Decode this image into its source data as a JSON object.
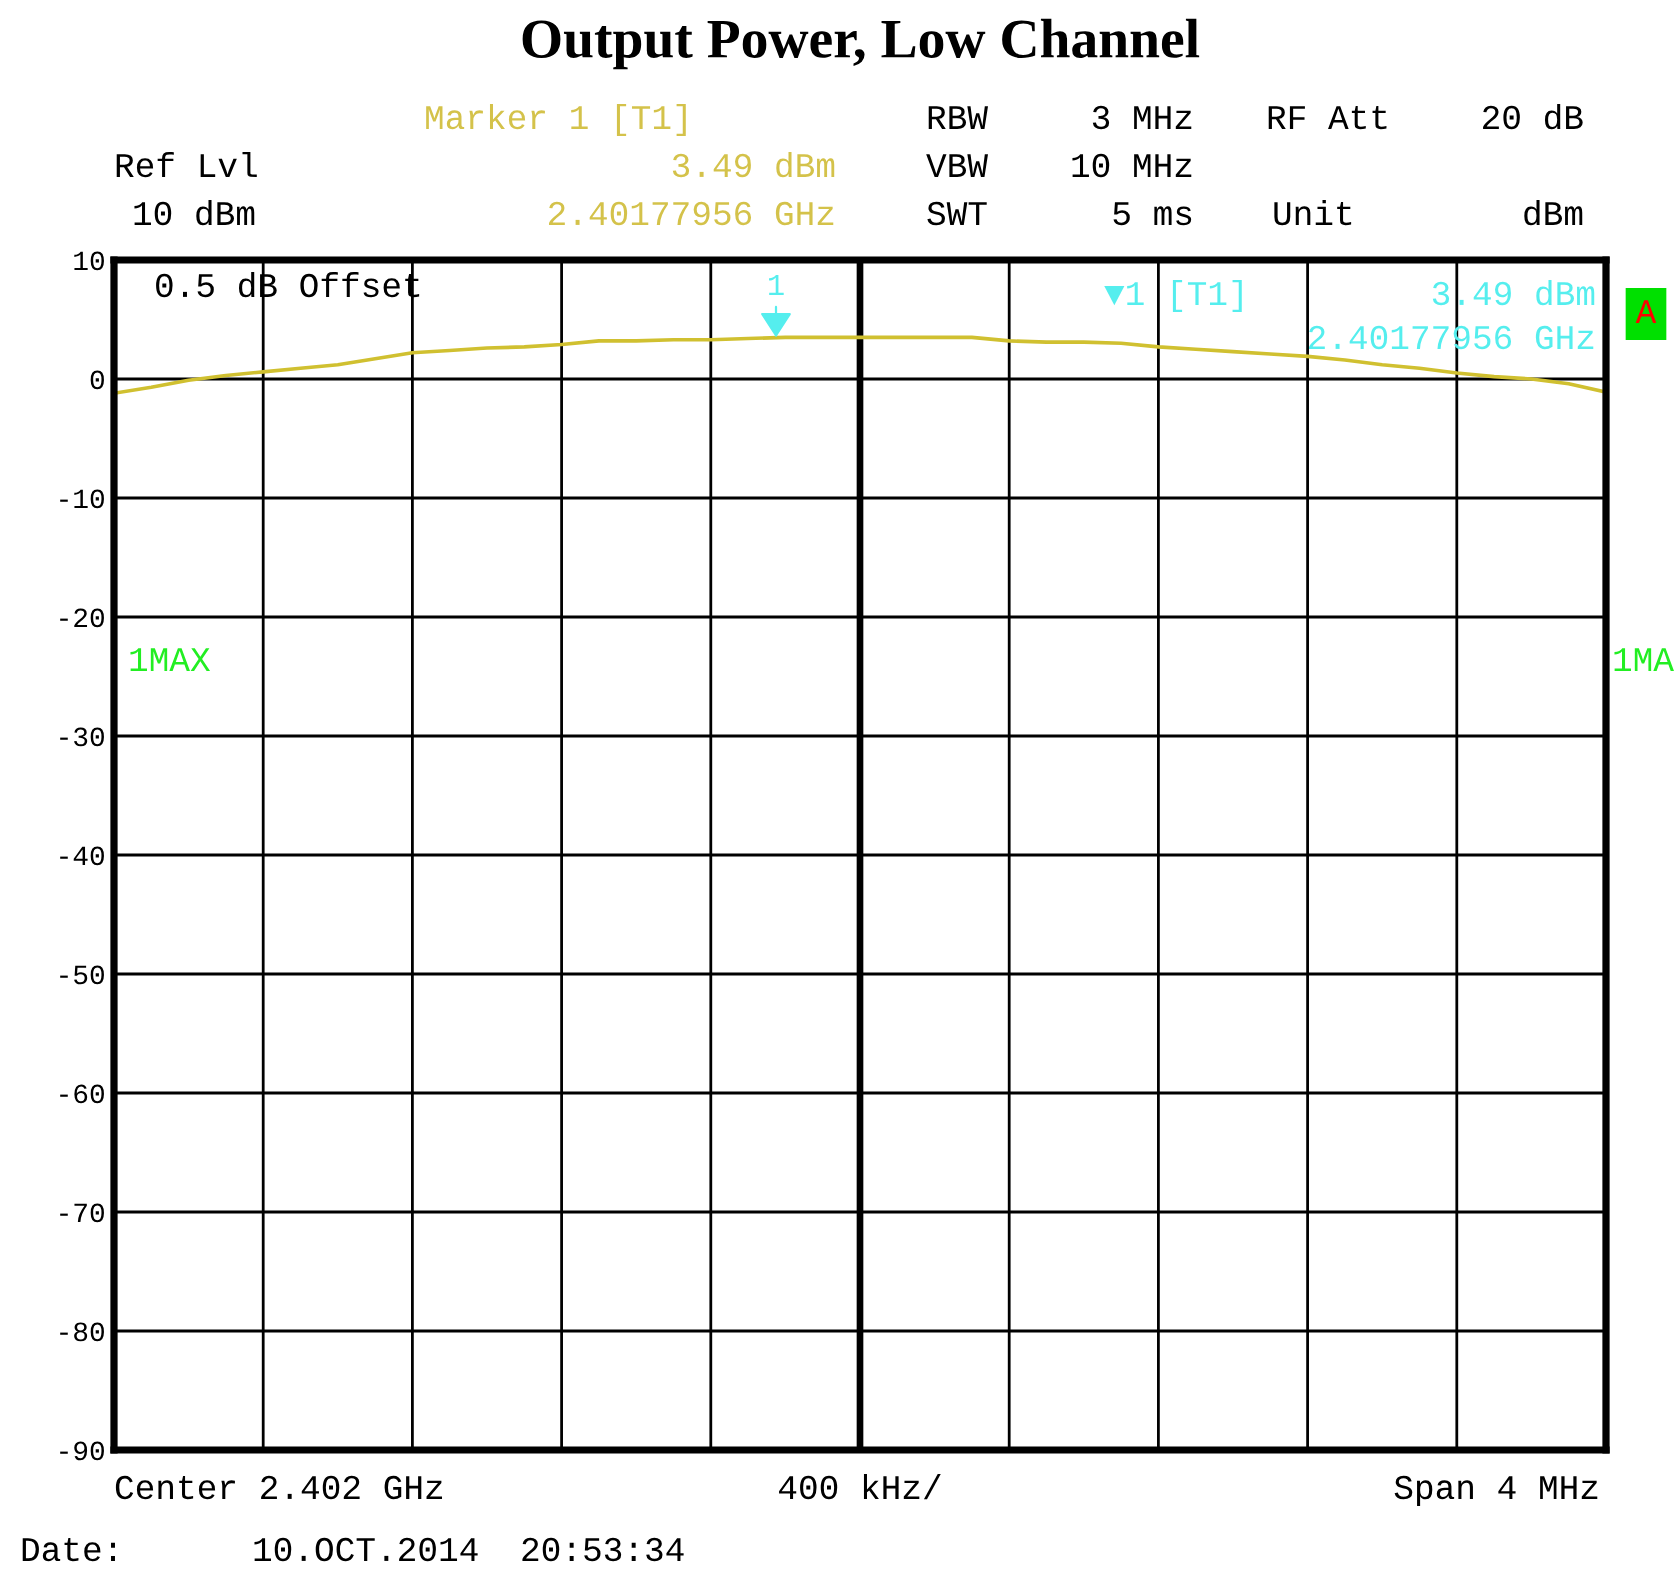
{
  "chart_data": {
    "type": "line",
    "title": "Output Power, Low Channel",
    "categories": [
      null,
      null,
      null,
      null,
      null,
      null,
      null,
      null,
      null,
      null,
      null,
      null,
      null,
      null,
      null,
      null,
      null,
      null,
      null,
      null,
      null,
      null,
      null,
      null,
      null,
      null,
      null,
      null,
      null,
      null,
      null,
      null,
      null,
      null,
      null,
      null,
      null,
      null,
      null,
      null,
      null
    ],
    "series": [
      {
        "color": "#d0c030",
        "values": [
          -1.2,
          -0.7,
          -0.1,
          0.3,
          0.6,
          0.9,
          1.2,
          1.7,
          2.2,
          2.4,
          2.6,
          2.7,
          2.9,
          3.2,
          3.2,
          3.3,
          3.3,
          3.4,
          3.5,
          3.5,
          3.5,
          3.5,
          3.5,
          3.5,
          3.2,
          3.1,
          3.1,
          3.0,
          2.7,
          2.5,
          2.3,
          2.1,
          1.9,
          1.6,
          1.2,
          0.9,
          0.5,
          0.2,
          0.0,
          -0.4,
          -1.1
        ]
      }
    ],
    "ylim": [
      -90,
      10
    ],
    "yticks": [
      -90,
      -80,
      -70,
      -60,
      -50,
      -40,
      -30,
      -20,
      -10,
      0,
      10
    ],
    "grid": true,
    "tick_labels": "y",
    "annotations": [
      "Marker 1 [T1]",
      "RBW",
      "3 MHz",
      "RF Att",
      "20 dB",
      "Ref Lvl",
      "3.49 dBm",
      "VBW",
      "10 MHz",
      "10 dBm",
      "2.40177956 GHz",
      "SWT",
      "5 ms",
      "Unit",
      "dBm",
      "0.5 dB Offset",
      "▼1 [T1]",
      "3.49 dBm",
      "2.40177956 GHz",
      "A",
      "1MAX",
      "1MA",
      {
        "text": "1",
        "y": 3.49
      },
      "Center 2.402 GHz",
      "400 kHz/",
      "Span 4 MHz",
      "Date:",
      "10.OCT.2014",
      "20:53:34"
    ]
  }
}
